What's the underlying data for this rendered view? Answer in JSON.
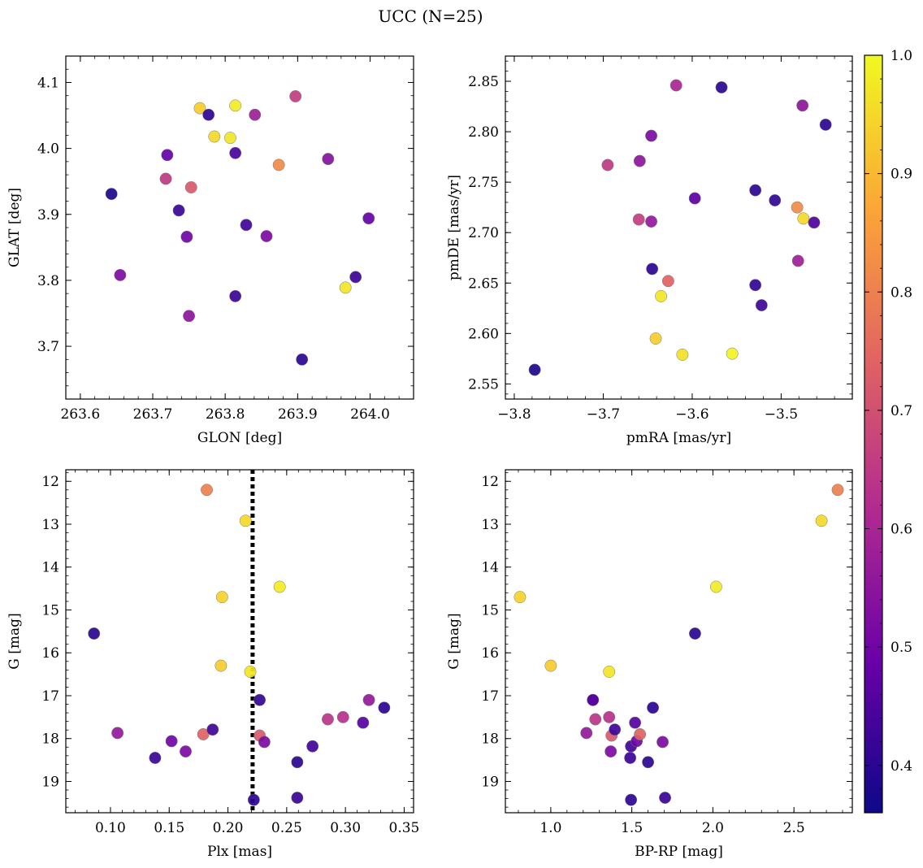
{
  "title": "UCC (N=25)",
  "colorbar": {
    "range": [
      0.36,
      1.0
    ],
    "ticks": [
      0.4,
      0.5,
      0.6,
      0.7,
      0.8,
      0.9,
      1.0
    ],
    "tick_labels": [
      "0.4",
      "0.5",
      "0.6",
      "0.7",
      "0.8",
      "0.9",
      "1.0"
    ],
    "colormap": "plasma",
    "colormap_stops": [
      "#0d0887",
      "#6a00a8",
      "#b12a90",
      "#e16462",
      "#fca636",
      "#f0f921"
    ]
  },
  "chart_data": [
    {
      "type": "scatter",
      "xlabel": "GLON [deg]",
      "ylabel": "GLAT [deg]",
      "xlim": [
        263.58,
        264.06
      ],
      "ylim": [
        3.62,
        4.14
      ],
      "xticks": [
        263.6,
        263.7,
        263.8,
        263.9,
        264.0
      ],
      "xtick_labels": [
        "263.6",
        "263.7",
        "263.8",
        "263.9",
        "264.0"
      ],
      "yticks": [
        3.7,
        3.8,
        3.9,
        4.0,
        4.1
      ],
      "ytick_labels": [
        "3.7",
        "3.8",
        "3.9",
        "4.0",
        "4.1"
      ],
      "points": [
        {
          "x": 263.643,
          "y": 3.931,
          "c": 0.38
        },
        {
          "x": 263.655,
          "y": 3.808,
          "c": 0.52
        },
        {
          "x": 263.72,
          "y": 3.99,
          "c": 0.48
        },
        {
          "x": 263.718,
          "y": 3.954,
          "c": 0.65
        },
        {
          "x": 263.736,
          "y": 3.906,
          "c": 0.42
        },
        {
          "x": 263.747,
          "y": 3.866,
          "c": 0.5
        },
        {
          "x": 263.75,
          "y": 3.746,
          "c": 0.55
        },
        {
          "x": 263.753,
          "y": 3.941,
          "c": 0.72
        },
        {
          "x": 263.765,
          "y": 4.061,
          "c": 0.93
        },
        {
          "x": 263.777,
          "y": 4.051,
          "c": 0.4
        },
        {
          "x": 263.785,
          "y": 4.018,
          "c": 0.95
        },
        {
          "x": 263.807,
          "y": 4.016,
          "c": 0.97
        },
        {
          "x": 263.814,
          "y": 4.065,
          "c": 0.98
        },
        {
          "x": 263.814,
          "y": 3.993,
          "c": 0.44
        },
        {
          "x": 263.814,
          "y": 3.776,
          "c": 0.42
        },
        {
          "x": 263.829,
          "y": 3.884,
          "c": 0.43
        },
        {
          "x": 263.841,
          "y": 4.051,
          "c": 0.58
        },
        {
          "x": 263.857,
          "y": 3.867,
          "c": 0.52
        },
        {
          "x": 263.874,
          "y": 3.975,
          "c": 0.82
        },
        {
          "x": 263.897,
          "y": 4.079,
          "c": 0.66
        },
        {
          "x": 263.906,
          "y": 3.68,
          "c": 0.4
        },
        {
          "x": 263.942,
          "y": 3.984,
          "c": 0.54
        },
        {
          "x": 263.966,
          "y": 3.789,
          "c": 0.97
        },
        {
          "x": 263.98,
          "y": 3.805,
          "c": 0.42
        },
        {
          "x": 263.998,
          "y": 3.894,
          "c": 0.48
        }
      ]
    },
    {
      "type": "scatter",
      "xlabel": "pmRA [mas/yr]",
      "ylabel": "pmDE [mas/yr]",
      "xlim": [
        -3.81,
        -3.42
      ],
      "ylim": [
        2.535,
        2.875
      ],
      "xticks": [
        -3.8,
        -3.7,
        -3.6,
        -3.5
      ],
      "xtick_labels": [
        "−3.8",
        "−3.7",
        "−3.6",
        "−3.5"
      ],
      "yticks": [
        2.55,
        2.6,
        2.65,
        2.7,
        2.75,
        2.8,
        2.85
      ],
      "ytick_labels": [
        "2.55",
        "2.60",
        "2.65",
        "2.70",
        "2.75",
        "2.80",
        "2.85"
      ],
      "points": [
        {
          "x": -3.777,
          "y": 2.564,
          "c": 0.38
        },
        {
          "x": -3.695,
          "y": 2.767,
          "c": 0.65
        },
        {
          "x": -3.66,
          "y": 2.713,
          "c": 0.66
        },
        {
          "x": -3.659,
          "y": 2.771,
          "c": 0.55
        },
        {
          "x": -3.646,
          "y": 2.796,
          "c": 0.52
        },
        {
          "x": -3.646,
          "y": 2.711,
          "c": 0.56
        },
        {
          "x": -3.645,
          "y": 2.664,
          "c": 0.4
        },
        {
          "x": -3.641,
          "y": 2.595,
          "c": 0.93
        },
        {
          "x": -3.635,
          "y": 2.637,
          "c": 0.97
        },
        {
          "x": -3.627,
          "y": 2.652,
          "c": 0.74
        },
        {
          "x": -3.618,
          "y": 2.846,
          "c": 0.6
        },
        {
          "x": -3.611,
          "y": 2.579,
          "c": 0.96
        },
        {
          "x": -3.597,
          "y": 2.734,
          "c": 0.47
        },
        {
          "x": -3.567,
          "y": 2.844,
          "c": 0.4
        },
        {
          "x": -3.555,
          "y": 2.58,
          "c": 0.99
        },
        {
          "x": -3.529,
          "y": 2.742,
          "c": 0.4
        },
        {
          "x": -3.529,
          "y": 2.648,
          "c": 0.41
        },
        {
          "x": -3.522,
          "y": 2.628,
          "c": 0.43
        },
        {
          "x": -3.507,
          "y": 2.732,
          "c": 0.41
        },
        {
          "x": -3.482,
          "y": 2.725,
          "c": 0.82
        },
        {
          "x": -3.481,
          "y": 2.672,
          "c": 0.58
        },
        {
          "x": -3.476,
          "y": 2.826,
          "c": 0.55
        },
        {
          "x": -3.475,
          "y": 2.714,
          "c": 0.95
        },
        {
          "x": -3.463,
          "y": 2.71,
          "c": 0.45
        },
        {
          "x": -3.45,
          "y": 2.807,
          "c": 0.4
        }
      ]
    },
    {
      "type": "scatter",
      "xlabel": "Plx [mas]",
      "ylabel": "G [mag]",
      "xlim": [
        0.062,
        0.358
      ],
      "ylim": [
        19.73,
        11.73
      ],
      "y_inverted": true,
      "vline": {
        "x": 0.221,
        "style": "dotted"
      },
      "xticks": [
        0.1,
        0.15,
        0.2,
        0.25,
        0.3,
        0.35
      ],
      "xtick_labels": [
        "0.10",
        "0.15",
        "0.20",
        "0.25",
        "0.30",
        "0.35"
      ],
      "yticks": [
        12,
        13,
        14,
        15,
        16,
        17,
        18,
        19
      ],
      "ytick_labels": [
        "12",
        "13",
        "14",
        "15",
        "16",
        "17",
        "18",
        "19"
      ],
      "points": [
        {
          "x": 0.086,
          "y": 15.55,
          "c": 0.4
        },
        {
          "x": 0.106,
          "y": 17.87,
          "c": 0.56
        },
        {
          "x": 0.138,
          "y": 18.45,
          "c": 0.42
        },
        {
          "x": 0.152,
          "y": 18.06,
          "c": 0.5
        },
        {
          "x": 0.164,
          "y": 18.3,
          "c": 0.52
        },
        {
          "x": 0.179,
          "y": 17.9,
          "c": 0.74
        },
        {
          "x": 0.182,
          "y": 12.2,
          "c": 0.8
        },
        {
          "x": 0.187,
          "y": 17.79,
          "c": 0.43
        },
        {
          "x": 0.194,
          "y": 16.3,
          "c": 0.93
        },
        {
          "x": 0.195,
          "y": 14.7,
          "c": 0.94
        },
        {
          "x": 0.215,
          "y": 12.92,
          "c": 0.95
        },
        {
          "x": 0.219,
          "y": 16.44,
          "c": 0.97
        },
        {
          "x": 0.222,
          "y": 19.43,
          "c": 0.4
        },
        {
          "x": 0.227,
          "y": 17.1,
          "c": 0.41
        },
        {
          "x": 0.227,
          "y": 17.93,
          "c": 0.72
        },
        {
          "x": 0.231,
          "y": 18.08,
          "c": 0.52
        },
        {
          "x": 0.244,
          "y": 14.46,
          "c": 0.98
        },
        {
          "x": 0.259,
          "y": 18.55,
          "c": 0.4
        },
        {
          "x": 0.259,
          "y": 19.38,
          "c": 0.42
        },
        {
          "x": 0.272,
          "y": 18.18,
          "c": 0.43
        },
        {
          "x": 0.285,
          "y": 17.55,
          "c": 0.64
        },
        {
          "x": 0.298,
          "y": 17.5,
          "c": 0.63
        },
        {
          "x": 0.315,
          "y": 17.63,
          "c": 0.46
        },
        {
          "x": 0.32,
          "y": 17.1,
          "c": 0.56
        },
        {
          "x": 0.333,
          "y": 17.28,
          "c": 0.4
        }
      ]
    },
    {
      "type": "scatter",
      "xlabel": "BP-RP [mag]",
      "ylabel": "G [mag]",
      "xlim": [
        0.72,
        2.86
      ],
      "ylim": [
        19.73,
        11.73
      ],
      "y_inverted": true,
      "xticks": [
        1.0,
        1.5,
        2.0,
        2.5
      ],
      "xtick_labels": [
        "1.0",
        "1.5",
        "2.0",
        "2.5"
      ],
      "yticks": [
        12,
        13,
        14,
        15,
        16,
        17,
        18,
        19
      ],
      "ytick_labels": [
        "12",
        "13",
        "14",
        "15",
        "16",
        "17",
        "18",
        "19"
      ],
      "points": [
        {
          "x": 0.81,
          "y": 14.7,
          "c": 0.94
        },
        {
          "x": 1.0,
          "y": 16.3,
          "c": 0.93
        },
        {
          "x": 1.22,
          "y": 17.87,
          "c": 0.56
        },
        {
          "x": 1.26,
          "y": 17.1,
          "c": 0.56
        },
        {
          "x": 1.26,
          "y": 17.1,
          "c": 0.46
        },
        {
          "x": 1.275,
          "y": 17.55,
          "c": 0.64
        },
        {
          "x": 1.36,
          "y": 16.44,
          "c": 0.97
        },
        {
          "x": 1.36,
          "y": 17.5,
          "c": 0.63
        },
        {
          "x": 1.37,
          "y": 18.3,
          "c": 0.52
        },
        {
          "x": 1.375,
          "y": 17.93,
          "c": 0.72
        },
        {
          "x": 1.395,
          "y": 17.79,
          "c": 0.43
        },
        {
          "x": 1.49,
          "y": 18.45,
          "c": 0.42
        },
        {
          "x": 1.495,
          "y": 18.18,
          "c": 0.43
        },
        {
          "x": 1.495,
          "y": 19.43,
          "c": 0.4
        },
        {
          "x": 1.52,
          "y": 17.63,
          "c": 0.46
        },
        {
          "x": 1.53,
          "y": 18.06,
          "c": 0.5
        },
        {
          "x": 1.55,
          "y": 17.9,
          "c": 0.74
        },
        {
          "x": 1.6,
          "y": 18.55,
          "c": 0.4
        },
        {
          "x": 1.63,
          "y": 17.28,
          "c": 0.4
        },
        {
          "x": 1.69,
          "y": 18.08,
          "c": 0.52
        },
        {
          "x": 1.705,
          "y": 19.38,
          "c": 0.42
        },
        {
          "x": 1.89,
          "y": 15.55,
          "c": 0.4
        },
        {
          "x": 2.02,
          "y": 14.46,
          "c": 0.98
        },
        {
          "x": 2.67,
          "y": 12.92,
          "c": 0.95
        },
        {
          "x": 2.77,
          "y": 12.2,
          "c": 0.8
        }
      ]
    }
  ]
}
